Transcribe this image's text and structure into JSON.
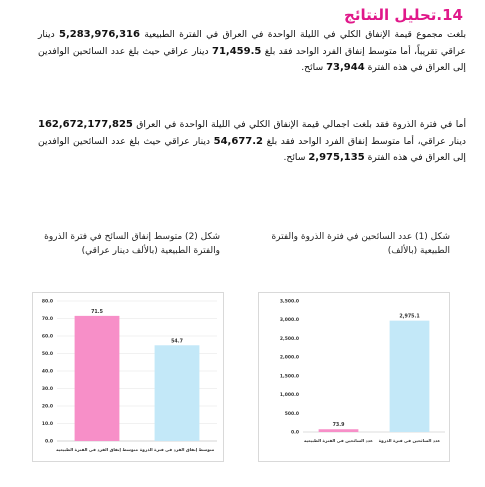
{
  "heading": "14.تحليل النتائج",
  "paragraphs": [
    [
      "بلغت مجموع قيمة الإنفاق الكلي في الليلة الواحدة في العراق في الفترة الطبيعية ",
      "5,283,976,316",
      " دينار عراقي تقريباً، أما متوسط إنفاق الفرد الواحد فقد بلغ ",
      "71,459.5",
      " دينار عراقي حيث بلغ عدد السائحين الوافدين إلى العراق في هذه الفترة ",
      "73,944",
      " سائح."
    ],
    [
      "أما في فترة الذروة فقد بلغت اجمالي قيمة الإنفاق الكلي في الليلة الواحدة في العراق ",
      "162,672,177,825",
      " دينار عراقي، أما متوسط إنفاق الفرد الواحد فقد بلغ ",
      "54,677.2",
      " دينار عراقي حيث بلغ عدد السائحين الوافدين إلى العراق في هذه الفترة ",
      "2,975,135",
      " سائح."
    ]
  ],
  "figures": [
    {
      "caption": "شكل (1) عدد السائحين في فترة الذروة والفترة الطبيعية (بالألف)",
      "chart": {
        "type": "bar",
        "categories": [
          "عدد السائحين في الفترة الطبيعية",
          "عدد السائحين في فترة الذروة"
        ],
        "values": [
          73.9,
          2975.1
        ],
        "value_labels": [
          "73.9",
          "2,975.1"
        ],
        "colors": [
          "#f78fc8",
          "#c3e8f8"
        ],
        "ylim": [
          0,
          3500
        ],
        "yticks": [
          {
            "value": 0,
            "label": "0.0"
          },
          {
            "value": 500,
            "label": "500.0"
          },
          {
            "value": 1000,
            "label": "1,000.0"
          },
          {
            "value": 1500,
            "label": "1,500.0"
          },
          {
            "value": 2000,
            "label": "2,000.0"
          },
          {
            "value": 2500,
            "label": "2,500.0"
          },
          {
            "value": 3000,
            "label": "3,000.0"
          },
          {
            "value": 3500,
            "label": "3,500.0"
          }
        ],
        "grid": false
      }
    },
    {
      "caption": "شكل (2) متوسط إنفاق السائح في فترة الذروة والفترة الطبيعية (بالألف دينار عراقي)",
      "chart": {
        "type": "bar",
        "categories": [
          "متوسط إنفاق الفرد في الفترة الطبيعية",
          "متوسط إنفاق الفرد في فترة الذروة"
        ],
        "values": [
          71.5,
          54.7
        ],
        "colors": [
          "#f78fc8",
          "#c3e8f8"
        ],
        "ylim": [
          0,
          80
        ],
        "yticks": [
          {
            "value": 0,
            "label": "0.0"
          },
          {
            "value": 10,
            "label": "10.0"
          },
          {
            "value": 20,
            "label": "20.0"
          },
          {
            "value": 30,
            "label": "30.0"
          },
          {
            "value": 40,
            "label": "40.0"
          },
          {
            "value": 50,
            "label": "50.0"
          },
          {
            "value": 60,
            "label": "60.0"
          },
          {
            "value": 70,
            "label": "70.0"
          },
          {
            "value": 80,
            "label": "80.0"
          }
        ],
        "grid": true
      }
    }
  ]
}
